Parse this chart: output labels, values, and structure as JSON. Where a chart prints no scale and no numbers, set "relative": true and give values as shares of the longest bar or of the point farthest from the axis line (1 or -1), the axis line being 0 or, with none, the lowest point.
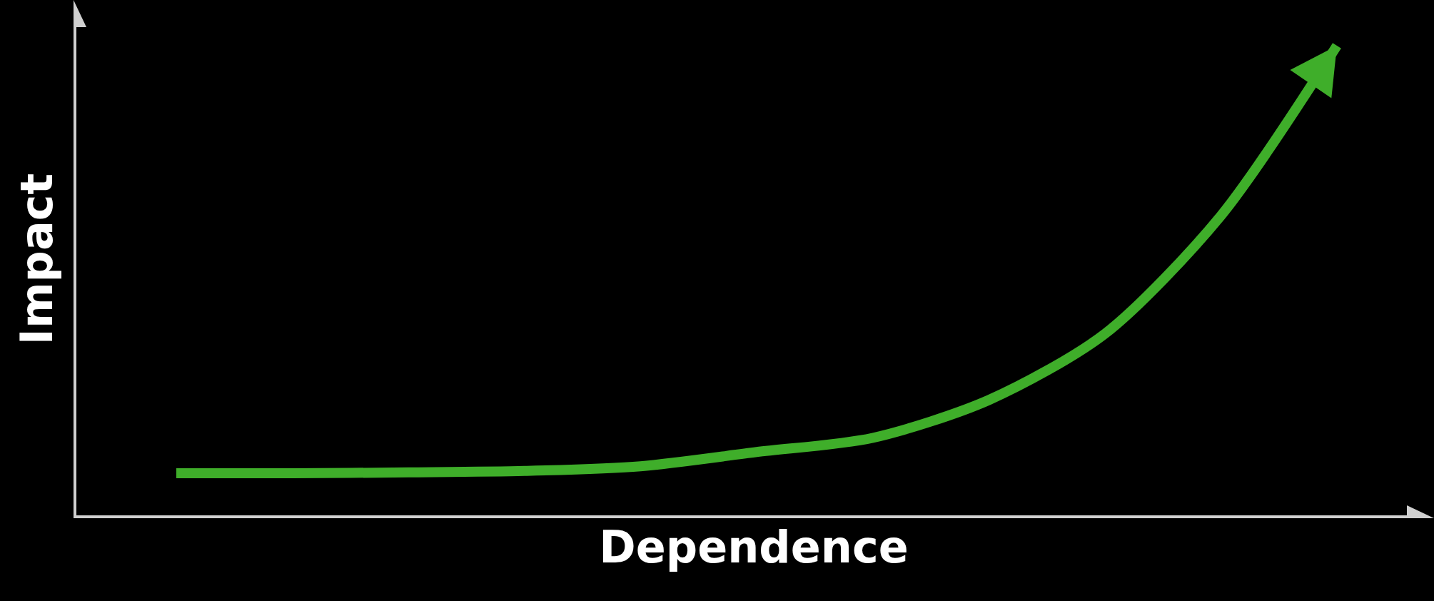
{
  "chart_data": {
    "type": "line",
    "relative": true,
    "xlabel": "Dependence",
    "ylabel": "Impact",
    "categories": [
      null,
      null,
      null,
      null,
      null,
      null,
      null,
      null,
      null,
      null,
      null
    ],
    "series": [
      {
        "color": "#3fae2a",
        "values": [
          0.095,
          0.095,
          0.097,
          0.1,
          0.11,
          0.14,
          0.17,
          0.25,
          0.39,
          0.64,
          1
        ]
      }
    ]
  }
}
